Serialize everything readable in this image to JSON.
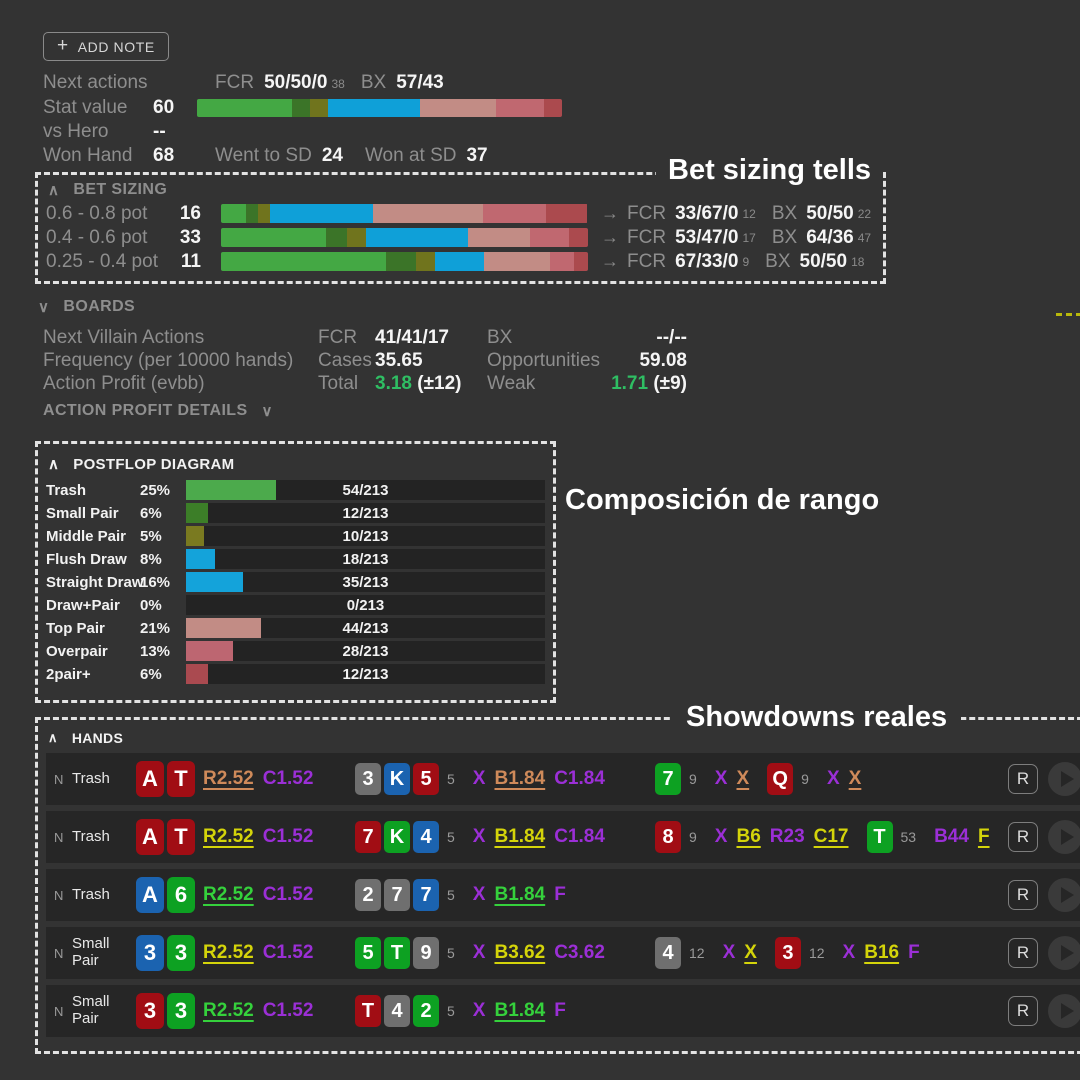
{
  "add_note": {
    "plus": "+",
    "label": "ADD NOTE"
  },
  "top": {
    "next_actions": {
      "label": "Next actions",
      "fcr_label": "FCR",
      "fcr_value": "50/50/0",
      "fcr_n": "38",
      "bx_label": "BX",
      "bx_value": "57/43"
    },
    "stat_value": {
      "label": "Stat value",
      "value": "60",
      "bar": [
        [
          "#44a844",
          26
        ],
        [
          "#3b7428",
          5
        ],
        [
          "#70741d",
          5
        ],
        [
          "#0fa0d8",
          25
        ],
        [
          "#c28c85",
          21
        ],
        [
          "#c06870",
          13
        ],
        [
          "#ab4a4e",
          5
        ]
      ]
    },
    "vs_hero": {
      "label": "vs Hero",
      "value": "--"
    },
    "won_hand": {
      "label": "Won Hand",
      "value": "68",
      "went_sd_label": "Went to SD",
      "went_sd": "24",
      "won_sd_label": "Won at SD",
      "won_sd": "37"
    }
  },
  "annotations": {
    "bet_sizing": "Bet sizing tells",
    "range": "Composición de rango",
    "showdowns": "Showdowns reales"
  },
  "bet_sizing": {
    "title": "BET SIZING",
    "chevron": "∧",
    "rows": [
      {
        "label": "0.6 - 0.8 pot",
        "value": "16",
        "bar": [
          [
            "#44a844",
            6.7
          ],
          [
            "#3b7428",
            3.4
          ],
          [
            "#70741d",
            3.2
          ],
          [
            "#0fa0d8",
            28
          ],
          [
            "#c28c85",
            30
          ],
          [
            "#c06870",
            17.4
          ],
          [
            "#ab4a4e",
            11
          ]
        ],
        "arrow": "→",
        "fcr_label": "FCR",
        "fcr": "33/67/0",
        "fcr_n": "12",
        "bx_label": "BX",
        "bx": "50/50",
        "bx_n": "22"
      },
      {
        "label": "0.4 - 0.6 pot",
        "value": "33",
        "bar": [
          [
            "#44a844",
            28.6
          ],
          [
            "#3b7428",
            5.7
          ],
          [
            "#70741d",
            5.1
          ],
          [
            "#0fa0d8",
            27.9
          ],
          [
            "#c28c85",
            17
          ],
          [
            "#c06870",
            10.5
          ],
          [
            "#ab4a4e",
            5.2
          ]
        ],
        "arrow": "→",
        "fcr_label": "FCR",
        "fcr": "53/47/0",
        "fcr_n": "17",
        "bx_label": "BX",
        "bx": "64/36",
        "bx_n": "47"
      },
      {
        "label": "0.25 - 0.4 pot",
        "value": "11",
        "bar": [
          [
            "#44a844",
            45
          ],
          [
            "#3b7428",
            8
          ],
          [
            "#70741d",
            5.3
          ],
          [
            "#0fa0d8",
            13.4
          ],
          [
            "#c28c85",
            18
          ],
          [
            "#c06870",
            6.5
          ],
          [
            "#ab4a4e",
            3.8
          ]
        ],
        "arrow": "→",
        "fcr_label": "FCR",
        "fcr": "67/33/0",
        "fcr_n": "9",
        "bx_label": "BX",
        "bx": "50/50",
        "bx_n": "18"
      }
    ]
  },
  "boards": {
    "title": "BOARDS",
    "chevron": "∨",
    "rows": [
      {
        "label": "Next Villain Actions",
        "c1": "FCR",
        "v1": "41/41/17",
        "v1b": "",
        "c2": "BX",
        "v2": "--/--",
        "v2b": ""
      },
      {
        "label": "Frequency (per 10000 hands)",
        "c1": "Cases",
        "v1": "35.65",
        "v1b": "",
        "c2": "Opportunities",
        "v2": "59.08",
        "v2b": ""
      },
      {
        "label": "Action Profit (evbb)",
        "c1": "Total",
        "v1": "3.18",
        "v1b": "(±12)",
        "c2": "Weak",
        "v2": "1.71",
        "v2b": "(±9)"
      }
    ],
    "details_label": "ACTION PROFIT DETAILS",
    "details_chevron": "∨"
  },
  "postflop": {
    "title": "POSTFLOP DIAGRAM",
    "chevron": "∧",
    "rows": [
      {
        "label": "Trash",
        "pct": "25%",
        "pct_num": 25,
        "count": "54/213",
        "color": "#4caa4c"
      },
      {
        "label": "Small Pair",
        "pct": "6%",
        "pct_num": 6,
        "count": "12/213",
        "color": "#3c7e28"
      },
      {
        "label": "Middle Pair",
        "pct": "5%",
        "pct_num": 5,
        "count": "10/213",
        "color": "#7a7a20"
      },
      {
        "label": "Flush Draw",
        "pct": "8%",
        "pct_num": 8,
        "count": "18/213",
        "color": "#14a3da"
      },
      {
        "label": "Straight Draw",
        "pct": "16%",
        "pct_num": 16,
        "count": "35/213",
        "color": "#14a3da"
      },
      {
        "label": "Draw+Pair",
        "pct": "0%",
        "pct_num": 0,
        "count": "0/213",
        "color": "#14a3da"
      },
      {
        "label": "Top Pair",
        "pct": "21%",
        "pct_num": 21,
        "count": "44/213",
        "color": "#c28c85"
      },
      {
        "label": "Overpair",
        "pct": "13%",
        "pct_num": 13,
        "count": "28/213",
        "color": "#bd6671"
      },
      {
        "label": "2pair+",
        "pct": "6%",
        "pct_num": 6,
        "count": "12/213",
        "color": "#aa4a50"
      }
    ]
  },
  "hands": {
    "title": "HANDS",
    "chevron": "∧",
    "replay_label": "R",
    "card_colors": {
      "red": "#a10d14",
      "blue": "#1b63b0",
      "green": "#0da122",
      "gray": "#6f6f6f"
    },
    "action_colors": {
      "purple": "#9b2fd6",
      "orange": "#cf8a5a",
      "yellow": "#d4d40a",
      "green": "#35d13c"
    },
    "rows": [
      {
        "note": "N",
        "category": "Trash",
        "hole": [
          {
            "r": "A",
            "s": "red"
          },
          {
            "r": "T",
            "s": "red"
          }
        ],
        "streets": [
          {
            "actions": [
              {
                "t": "R2.52",
                "c": "orange",
                "u": true
              },
              {
                "t": "C1.52",
                "c": "purple"
              }
            ]
          },
          {
            "cards": [
              {
                "r": "3",
                "s": "gray"
              },
              {
                "r": "K",
                "s": "blue"
              },
              {
                "r": "5",
                "s": "red"
              }
            ],
            "pot": "5",
            "actions": [
              {
                "t": "X",
                "c": "purple"
              },
              {
                "t": "B1.84",
                "c": "orange",
                "u": true
              },
              {
                "t": "C1.84",
                "c": "purple"
              }
            ]
          },
          {
            "cards": [
              {
                "r": "7",
                "s": "green"
              }
            ],
            "pot": "9",
            "actions": [
              {
                "t": "X",
                "c": "purple"
              },
              {
                "t": "X",
                "c": "orange",
                "u": true
              }
            ]
          },
          {
            "cards": [
              {
                "r": "Q",
                "s": "red"
              }
            ],
            "pot": "9",
            "actions": [
              {
                "t": "X",
                "c": "purple"
              },
              {
                "t": "X",
                "c": "orange",
                "u": true
              }
            ]
          }
        ]
      },
      {
        "note": "N",
        "category": "Trash",
        "hole": [
          {
            "r": "A",
            "s": "red"
          },
          {
            "r": "T",
            "s": "red"
          }
        ],
        "streets": [
          {
            "actions": [
              {
                "t": "R2.52",
                "c": "yellow",
                "u": true
              },
              {
                "t": "C1.52",
                "c": "purple"
              }
            ]
          },
          {
            "cards": [
              {
                "r": "7",
                "s": "red"
              },
              {
                "r": "K",
                "s": "green"
              },
              {
                "r": "4",
                "s": "blue"
              }
            ],
            "pot": "5",
            "actions": [
              {
                "t": "X",
                "c": "purple"
              },
              {
                "t": "B1.84",
                "c": "yellow",
                "u": true
              },
              {
                "t": "C1.84",
                "c": "purple"
              }
            ]
          },
          {
            "cards": [
              {
                "r": "8",
                "s": "red"
              }
            ],
            "pot": "9",
            "actions": [
              {
                "t": "X",
                "c": "purple"
              },
              {
                "t": "B6",
                "c": "yellow",
                "u": true
              },
              {
                "t": "R23",
                "c": "purple"
              },
              {
                "t": "C17",
                "c": "yellow",
                "u": true
              }
            ]
          },
          {
            "cards": [
              {
                "r": "T",
                "s": "green"
              }
            ],
            "pot": "53",
            "actions": [
              {
                "t": "B44",
                "c": "purple"
              },
              {
                "t": "F",
                "c": "yellow",
                "u": true
              }
            ]
          }
        ]
      },
      {
        "note": "N",
        "category": "Trash",
        "hole": [
          {
            "r": "A",
            "s": "blue"
          },
          {
            "r": "6",
            "s": "green"
          }
        ],
        "streets": [
          {
            "actions": [
              {
                "t": "R2.52",
                "c": "green",
                "u": true
              },
              {
                "t": "C1.52",
                "c": "purple"
              }
            ]
          },
          {
            "cards": [
              {
                "r": "2",
                "s": "gray"
              },
              {
                "r": "7",
                "s": "gray"
              },
              {
                "r": "7",
                "s": "blue"
              }
            ],
            "pot": "5",
            "actions": [
              {
                "t": "X",
                "c": "purple"
              },
              {
                "t": "B1.84",
                "c": "green",
                "u": true
              },
              {
                "t": "F",
                "c": "purple"
              }
            ]
          }
        ]
      },
      {
        "note": "N",
        "category": "Small Pair",
        "hole": [
          {
            "r": "3",
            "s": "blue"
          },
          {
            "r": "3",
            "s": "green"
          }
        ],
        "streets": [
          {
            "actions": [
              {
                "t": "R2.52",
                "c": "yellow",
                "u": true
              },
              {
                "t": "C1.52",
                "c": "purple"
              }
            ]
          },
          {
            "cards": [
              {
                "r": "5",
                "s": "green"
              },
              {
                "r": "T",
                "s": "green"
              },
              {
                "r": "9",
                "s": "gray"
              }
            ],
            "pot": "5",
            "actions": [
              {
                "t": "X",
                "c": "purple"
              },
              {
                "t": "B3.62",
                "c": "yellow",
                "u": true
              },
              {
                "t": "C3.62",
                "c": "purple"
              }
            ]
          },
          {
            "cards": [
              {
                "r": "4",
                "s": "gray"
              }
            ],
            "pot": "12",
            "actions": [
              {
                "t": "X",
                "c": "purple"
              },
              {
                "t": "X",
                "c": "yellow",
                "u": true
              }
            ]
          },
          {
            "cards": [
              {
                "r": "3",
                "s": "red"
              }
            ],
            "pot": "12",
            "actions": [
              {
                "t": "X",
                "c": "purple"
              },
              {
                "t": "B16",
                "c": "yellow",
                "u": true
              },
              {
                "t": "F",
                "c": "purple"
              }
            ]
          }
        ]
      },
      {
        "note": "N",
        "category": "Small Pair",
        "hole": [
          {
            "r": "3",
            "s": "red"
          },
          {
            "r": "3",
            "s": "green"
          }
        ],
        "streets": [
          {
            "actions": [
              {
                "t": "R2.52",
                "c": "green",
                "u": true
              },
              {
                "t": "C1.52",
                "c": "purple"
              }
            ]
          },
          {
            "cards": [
              {
                "r": "T",
                "s": "red"
              },
              {
                "r": "4",
                "s": "gray"
              },
              {
                "r": "2",
                "s": "green"
              }
            ],
            "pot": "5",
            "actions": [
              {
                "t": "X",
                "c": "purple"
              },
              {
                "t": "B1.84",
                "c": "green",
                "u": true
              },
              {
                "t": "F",
                "c": "purple"
              }
            ]
          }
        ]
      }
    ]
  }
}
